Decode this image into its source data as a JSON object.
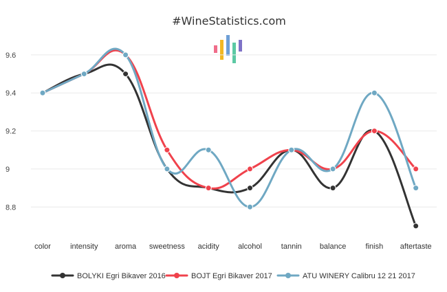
{
  "header": {
    "site_title": "#WineStatistics.com"
  },
  "colors": {
    "series": [
      "#333333",
      "#f0424c",
      "#6fa8c3"
    ],
    "logo_bars": [
      "#f06d8a",
      "#f2b822",
      "#6e9fd6",
      "#5cc9a4",
      "#7e72c7"
    ]
  },
  "chart_data": {
    "type": "line",
    "smooth": true,
    "categories": [
      "color",
      "intensity",
      "aroma",
      "sweetness",
      "acidity",
      "alcohol",
      "tannin",
      "balance",
      "finish",
      "aftertaste"
    ],
    "series": [
      {
        "name": "BOLYKI Egri Bikaver 2016",
        "values": [
          9.4,
          9.5,
          9.5,
          9.0,
          8.9,
          8.9,
          9.1,
          8.9,
          9.2,
          8.7
        ]
      },
      {
        "name": "BOJT Egri Bikaver 2017",
        "values": [
          9.4,
          9.5,
          9.6,
          9.1,
          8.9,
          9.0,
          9.1,
          9.0,
          9.2,
          9.0
        ]
      },
      {
        "name": "ATU WINERY Calibru 12 21 2017",
        "values": [
          9.4,
          9.5,
          9.6,
          9.0,
          9.1,
          8.8,
          9.1,
          9.0,
          9.4,
          8.9
        ]
      }
    ],
    "yticks": [
      "8.8",
      "9",
      "9.2",
      "9.4",
      "9.6"
    ],
    "ylim": [
      8.66,
      9.69
    ],
    "grid": true,
    "legend_position": "bottom"
  }
}
